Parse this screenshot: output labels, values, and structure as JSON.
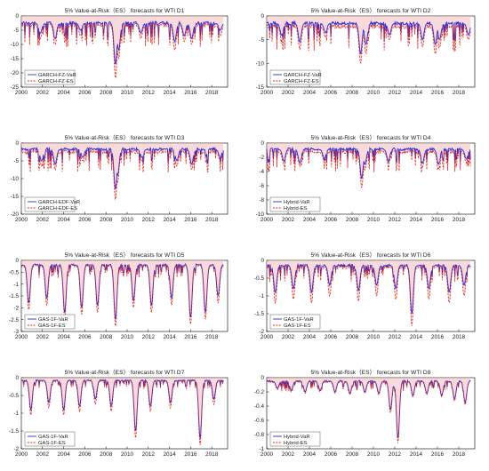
{
  "colors": {
    "var_line": "#2b2bd6",
    "es_line": "#e0241c",
    "es_fill": "#f4bcbc",
    "background": "#ffffff",
    "axis": "#000000",
    "grid": "#d9d9d9"
  },
  "chart_data": [
    {
      "type": "line",
      "title": "5% Value-at-Risk（ES） forecasts for WTI D1",
      "x_ticks": [
        "2000",
        "2002",
        "2004",
        "2006",
        "2008",
        "2010",
        "2012",
        "2014",
        "2016",
        "2018"
      ],
      "ylim": [
        -25,
        0
      ],
      "y_ticks": [
        0,
        -5,
        -10,
        -15,
        -20,
        -25
      ],
      "legend_position": "bottom-left",
      "series": [
        {
          "name": "GARCH-FZ-VaR",
          "style": "solid",
          "color": "#2b2bd6",
          "baseline": -2.6,
          "spikes": [
            [
              2001.8,
              -6
            ],
            [
              2003.2,
              -8
            ],
            [
              2005.6,
              -5
            ],
            [
              2008.9,
              -17
            ],
            [
              2009.2,
              -12
            ],
            [
              2011.3,
              -6
            ],
            [
              2014.5,
              -9
            ],
            [
              2015.4,
              -7
            ],
            [
              2016.1,
              -8
            ],
            [
              2018.8,
              -5
            ]
          ]
        },
        {
          "name": "GARCH-FZ-ES",
          "style": "dashed",
          "color": "#e0241c",
          "baseline": -3.4,
          "spikes": [
            [
              2001.8,
              -8
            ],
            [
              2003.2,
              -10
            ],
            [
              2005.6,
              -7
            ],
            [
              2008.9,
              -22
            ],
            [
              2009.2,
              -15
            ],
            [
              2011.3,
              -8
            ],
            [
              2014.5,
              -12
            ],
            [
              2015.4,
              -9
            ],
            [
              2016.1,
              -10
            ],
            [
              2018.8,
              -7
            ]
          ]
        }
      ]
    },
    {
      "type": "line",
      "title": "5% Value-at-Risk（ES） forecasts for WTI D2",
      "x_ticks": [
        "2000",
        "2002",
        "2004",
        "2006",
        "2008",
        "2010",
        "2012",
        "2014",
        "2016",
        "2018"
      ],
      "ylim": [
        -15,
        0
      ],
      "y_ticks": [
        0,
        -5,
        -10,
        -15
      ],
      "legend_position": "bottom-left",
      "series": [
        {
          "name": "GARCH-FZ-VaR",
          "style": "solid",
          "color": "#2b2bd6",
          "baseline": -1.6,
          "spikes": [
            [
              2001.4,
              -4
            ],
            [
              2003.1,
              -5.5
            ],
            [
              2005.5,
              -3.5
            ],
            [
              2008.8,
              -8
            ],
            [
              2009.3,
              -6
            ],
            [
              2011.5,
              -4
            ],
            [
              2014.6,
              -5
            ],
            [
              2015.8,
              -6
            ],
            [
              2016.2,
              -5
            ],
            [
              2018.9,
              -4
            ]
          ]
        },
        {
          "name": "GARCH-FZ-ES",
          "style": "dashed",
          "color": "#e0241c",
          "baseline": -2.3,
          "spikes": [
            [
              2001.4,
              -5
            ],
            [
              2003.1,
              -7
            ],
            [
              2005.5,
              -4.5
            ],
            [
              2008.8,
              -10
            ],
            [
              2009.3,
              -8
            ],
            [
              2011.5,
              -5
            ],
            [
              2014.6,
              -6.5
            ],
            [
              2015.8,
              -8
            ],
            [
              2016.2,
              -6.5
            ],
            [
              2018.9,
              -5
            ]
          ]
        }
      ]
    },
    {
      "type": "line",
      "title": "5% Value-at-Risk（ES） forecasts for WTI D3",
      "x_ticks": [
        "2000",
        "2002",
        "2004",
        "2006",
        "2008",
        "2010",
        "2012",
        "2014",
        "2016",
        "2018"
      ],
      "ylim": [
        -20,
        0
      ],
      "y_ticks": [
        0,
        -5,
        -10,
        -15,
        -20
      ],
      "legend_position": "bottom-left",
      "series": [
        {
          "name": "GARCH-EDF-VaR",
          "style": "solid",
          "color": "#2b2bd6",
          "baseline": -1.8,
          "spikes": [
            [
              2001.9,
              -5
            ],
            [
              2003.2,
              -6
            ],
            [
              2005.8,
              -4
            ],
            [
              2008.9,
              -13
            ],
            [
              2009.1,
              -9
            ],
            [
              2011.4,
              -4
            ],
            [
              2014.7,
              -5
            ],
            [
              2016.1,
              -6
            ],
            [
              2018.8,
              -4
            ]
          ]
        },
        {
          "name": "GARCH-EDF-ES",
          "style": "dashed",
          "color": "#e0241c",
          "baseline": -2.6,
          "spikes": [
            [
              2001.9,
              -6.5
            ],
            [
              2003.2,
              -7.5
            ],
            [
              2005.8,
              -5
            ],
            [
              2008.9,
              -16
            ],
            [
              2009.1,
              -11
            ],
            [
              2011.4,
              -5
            ],
            [
              2014.7,
              -6.5
            ],
            [
              2016.1,
              -7.5
            ],
            [
              2018.8,
              -5
            ]
          ]
        }
      ]
    },
    {
      "type": "line",
      "title": "5% Value-at-Risk（ES） forecasts for WTI D4",
      "x_ticks": [
        "2000",
        "2002",
        "2004",
        "2006",
        "2008",
        "2010",
        "2012",
        "2014",
        "2016",
        "2018"
      ],
      "ylim": [
        -10,
        0
      ],
      "y_ticks": [
        0,
        -2,
        -4,
        -6,
        -8,
        -10
      ],
      "legend_position": "bottom-left",
      "series": [
        {
          "name": "Hybrid-VaR",
          "style": "solid",
          "color": "#2b2bd6",
          "baseline": -0.9,
          "spikes": [
            [
              2001.6,
              -2.5
            ],
            [
              2003.1,
              -2.8
            ],
            [
              2005.4,
              -2.2
            ],
            [
              2008.9,
              -5
            ],
            [
              2009.2,
              -3
            ],
            [
              2011.4,
              -2.5
            ],
            [
              2014.6,
              -2.8
            ],
            [
              2016.1,
              -3
            ],
            [
              2018.7,
              -2.2
            ]
          ]
        },
        {
          "name": "Hybrid-ES",
          "style": "dashed",
          "color": "#e0241c",
          "baseline": -1.3,
          "spikes": [
            [
              2001.6,
              -3
            ],
            [
              2003.1,
              -3.3
            ],
            [
              2005.4,
              -2.7
            ],
            [
              2008.9,
              -6.3
            ],
            [
              2009.2,
              -3.8
            ],
            [
              2011.4,
              -3
            ],
            [
              2014.6,
              -3.4
            ],
            [
              2016.1,
              -3.6
            ],
            [
              2018.7,
              -2.7
            ]
          ]
        }
      ]
    },
    {
      "type": "line",
      "title": "5% Value-at-Risk（ES） forecasts for WTI D5",
      "x_ticks": [
        "2000",
        "2002",
        "2004",
        "2006",
        "2008",
        "2010",
        "2012",
        "2014",
        "2016",
        "2018"
      ],
      "ylim": [
        -3,
        0
      ],
      "y_ticks": [
        0,
        -0.5,
        -1,
        -1.5,
        -2,
        -2.5,
        -3
      ],
      "legend_position": "bottom-left",
      "series": [
        {
          "name": "GAS-1F-VaR",
          "style": "solid",
          "color": "#2b2bd6",
          "baseline": -0.2,
          "spikes": [
            [
              2000.7,
              -1.8
            ],
            [
              2002.4,
              -1.6
            ],
            [
              2004.1,
              -2.2
            ],
            [
              2005.7,
              -2
            ],
            [
              2007.2,
              -1.9
            ],
            [
              2008.9,
              -2.5
            ],
            [
              2010.6,
              -1.7
            ],
            [
              2012.3,
              -1.9
            ],
            [
              2014.2,
              -1.6
            ],
            [
              2016.0,
              -2.4
            ],
            [
              2017.4,
              -2.2
            ],
            [
              2018.6,
              -1.5
            ]
          ]
        },
        {
          "name": "GAS-1F-ES",
          "style": "dashed",
          "color": "#e0241c",
          "baseline": -0.25,
          "spikes": [
            [
              2000.7,
              -2.1
            ],
            [
              2002.4,
              -1.9
            ],
            [
              2004.1,
              -2.5
            ],
            [
              2005.7,
              -2.3
            ],
            [
              2007.2,
              -2.2
            ],
            [
              2008.9,
              -2.8
            ],
            [
              2010.6,
              -2
            ],
            [
              2012.3,
              -2.2
            ],
            [
              2014.2,
              -1.9
            ],
            [
              2016.0,
              -2.7
            ],
            [
              2017.4,
              -2.5
            ],
            [
              2018.6,
              -1.8
            ]
          ]
        }
      ]
    },
    {
      "type": "line",
      "title": "5% Value-at-Risk（ES） forecasts for WTI D6",
      "x_ticks": [
        "2000",
        "2002",
        "2004",
        "2006",
        "2008",
        "2010",
        "2012",
        "2014",
        "2016",
        "2018"
      ],
      "ylim": [
        -2,
        0
      ],
      "y_ticks": [
        0,
        -0.5,
        -1,
        -1.5,
        -2
      ],
      "legend_position": "bottom-left",
      "series": [
        {
          "name": "GAS-1F-VaR",
          "style": "solid",
          "color": "#2b2bd6",
          "baseline": -0.15,
          "spikes": [
            [
              2000.8,
              -0.9
            ],
            [
              2002.5,
              -0.8
            ],
            [
              2004.2,
              -0.9
            ],
            [
              2005.9,
              -0.7
            ],
            [
              2008.6,
              -0.85
            ],
            [
              2010.3,
              -0.7
            ],
            [
              2012.1,
              -0.8
            ],
            [
              2013.6,
              -1.5
            ],
            [
              2015.2,
              -0.8
            ],
            [
              2017.1,
              -0.9
            ],
            [
              2018.5,
              -0.7
            ]
          ]
        },
        {
          "name": "GAS-1F-ES",
          "style": "dashed",
          "color": "#e0241c",
          "baseline": -0.2,
          "spikes": [
            [
              2000.8,
              -1.2
            ],
            [
              2002.5,
              -1.1
            ],
            [
              2004.2,
              -1.2
            ],
            [
              2005.9,
              -1
            ],
            [
              2008.6,
              -1.15
            ],
            [
              2010.3,
              -1
            ],
            [
              2012.1,
              -1.1
            ],
            [
              2013.6,
              -1.85
            ],
            [
              2015.2,
              -1.1
            ],
            [
              2017.1,
              -1.2
            ],
            [
              2018.5,
              -1
            ]
          ]
        }
      ]
    },
    {
      "type": "line",
      "title": "5% Value-at-Risk（ES） forecasts for WTI D7",
      "x_ticks": [
        "2000",
        "2002",
        "2004",
        "2006",
        "2008",
        "2010",
        "2012",
        "2014",
        "2016",
        "2018"
      ],
      "ylim": [
        -2,
        0
      ],
      "y_ticks": [
        0,
        -0.5,
        -1,
        -1.5,
        -2
      ],
      "legend_position": "bottom-left",
      "series": [
        {
          "name": "GAS-1F-VaR",
          "style": "solid",
          "color": "#2b2bd6",
          "baseline": -0.08,
          "spikes": [
            [
              2000.9,
              -0.9
            ],
            [
              2002.6,
              -0.7
            ],
            [
              2004.0,
              -0.9
            ],
            [
              2005.5,
              -0.8
            ],
            [
              2007.0,
              -0.6
            ],
            [
              2008.5,
              -0.8
            ],
            [
              2010.8,
              -1.5
            ],
            [
              2012.2,
              -0.8
            ],
            [
              2014.1,
              -0.7
            ],
            [
              2016.9,
              -1.7
            ],
            [
              2018.2,
              -0.6
            ]
          ]
        },
        {
          "name": "GAS-1F-ES",
          "style": "dashed",
          "color": "#e0241c",
          "baseline": -0.1,
          "spikes": [
            [
              2000.9,
              -1.05
            ],
            [
              2002.6,
              -0.85
            ],
            [
              2004.0,
              -1.05
            ],
            [
              2005.5,
              -0.95
            ],
            [
              2007.0,
              -0.75
            ],
            [
              2008.5,
              -0.95
            ],
            [
              2010.8,
              -1.7
            ],
            [
              2012.2,
              -0.95
            ],
            [
              2014.1,
              -0.85
            ],
            [
              2016.9,
              -1.9
            ],
            [
              2018.2,
              -0.75
            ]
          ]
        }
      ]
    },
    {
      "type": "line",
      "title": "5% Value-at-Risk（ES） forecasts for WTI D8",
      "x_ticks": [
        "2000",
        "2002",
        "2004",
        "2006",
        "2008",
        "2010",
        "2012",
        "2014",
        "2016",
        "2018"
      ],
      "ylim": [
        -1,
        0
      ],
      "y_ticks": [
        0,
        -0.2,
        -0.4,
        -0.6,
        -0.8,
        -1
      ],
      "legend_position": "bottom-left",
      "series": [
        {
          "name": "Hybrid-VaR",
          "style": "solid",
          "color": "#2b2bd6",
          "baseline": -0.05,
          "spikes": [
            [
              2001.0,
              -0.15
            ],
            [
              2002.3,
              -0.18
            ],
            [
              2003.6,
              -0.2
            ],
            [
              2005.0,
              -0.18
            ],
            [
              2006.4,
              -0.2
            ],
            [
              2007.8,
              -0.22
            ],
            [
              2009.2,
              -0.2
            ],
            [
              2010.5,
              -0.22
            ],
            [
              2011.6,
              -0.45
            ],
            [
              2012.3,
              -0.85
            ],
            [
              2013.7,
              -0.25
            ],
            [
              2015.0,
              -0.22
            ],
            [
              2016.4,
              -0.25
            ],
            [
              2017.6,
              -0.3
            ],
            [
              2018.6,
              -0.35
            ]
          ]
        },
        {
          "name": "Hybrid-ES",
          "style": "dashed",
          "color": "#e0241c",
          "baseline": -0.06,
          "spikes": [
            [
              2001.0,
              -0.17
            ],
            [
              2002.3,
              -0.2
            ],
            [
              2003.6,
              -0.22
            ],
            [
              2005.0,
              -0.2
            ],
            [
              2006.4,
              -0.22
            ],
            [
              2007.8,
              -0.24
            ],
            [
              2009.2,
              -0.22
            ],
            [
              2010.5,
              -0.24
            ],
            [
              2011.6,
              -0.5
            ],
            [
              2012.3,
              -0.92
            ],
            [
              2013.7,
              -0.27
            ],
            [
              2015.0,
              -0.24
            ],
            [
              2016.4,
              -0.27
            ],
            [
              2017.6,
              -0.33
            ],
            [
              2018.6,
              -0.38
            ]
          ]
        }
      ]
    }
  ]
}
